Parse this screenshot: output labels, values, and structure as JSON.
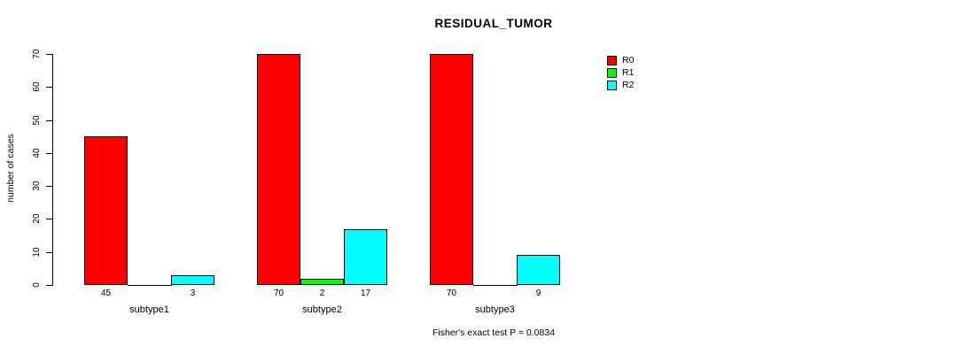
{
  "chart_data": {
    "type": "bar",
    "title": "RESIDUAL_TUMOR",
    "ylabel": "number of cases",
    "ylim": [
      0,
      70
    ],
    "yticks": [
      0,
      10,
      20,
      30,
      40,
      50,
      60,
      70
    ],
    "categories": [
      "subtype1",
      "subtype2",
      "subtype3"
    ],
    "series": [
      {
        "name": "R0",
        "color": "#ff0000",
        "values": [
          45,
          70,
          70
        ]
      },
      {
        "name": "R1",
        "color": "#00ff00",
        "values": [
          0,
          2,
          0
        ]
      },
      {
        "name": "R2",
        "color": "#00ffff",
        "values": [
          3,
          17,
          9
        ]
      }
    ],
    "bar_value_labels_shown": [
      [
        "45",
        "",
        "3"
      ],
      [
        "70",
        "2",
        "17"
      ],
      [
        "70",
        "",
        "9"
      ]
    ],
    "legend_position": "top-right",
    "grid": false,
    "note": "Fisher's exact test P = 0.0834",
    "background_color": "#ffffff",
    "axis_color": "#000000"
  }
}
